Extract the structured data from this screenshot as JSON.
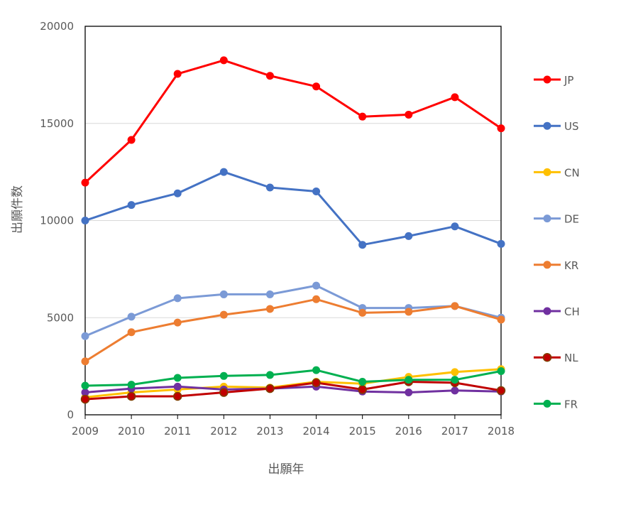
{
  "chart_data": {
    "type": "line",
    "title": "",
    "xlabel": "出願年",
    "ylabel": "出願件数",
    "x": [
      "2009",
      "2010",
      "2011",
      "2012",
      "2013",
      "2014",
      "2015",
      "2016",
      "2017",
      "2018"
    ],
    "ylim": [
      0,
      20000
    ],
    "yticks": [
      "0",
      "5000",
      "10000",
      "15000",
      "20000"
    ],
    "grid": true,
    "legend_position": "right",
    "series": [
      {
        "name": "JP",
        "color": "#ff0000",
        "values": [
          11950,
          14150,
          17550,
          18250,
          17450,
          16900,
          15350,
          15450,
          16350,
          14750
        ]
      },
      {
        "name": "US",
        "color": "#4472c4",
        "values": [
          10000,
          10800,
          11400,
          12500,
          11700,
          11500,
          8750,
          9200,
          9700,
          8800
        ]
      },
      {
        "name": "CN",
        "color": "#ffc000",
        "values": [
          900,
          1150,
          1300,
          1450,
          1400,
          1700,
          1600,
          1950,
          2200,
          2350
        ]
      },
      {
        "name": "DE",
        "color": "#7b9ad6",
        "values": [
          4050,
          5050,
          6000,
          6200,
          6200,
          6650,
          5500,
          5500,
          5600,
          5000
        ]
      },
      {
        "name": "KR",
        "color": "#ed7d31",
        "values": [
          2750,
          4250,
          4750,
          5150,
          5450,
          5950,
          5250,
          5300,
          5600,
          4900
        ]
      },
      {
        "name": "CH",
        "color": "#7030a0",
        "values": [
          1150,
          1350,
          1450,
          1300,
          1350,
          1450,
          1200,
          1150,
          1250,
          1200
        ]
      },
      {
        "name": "NL",
        "color": "#c00000",
        "values": [
          800,
          950,
          950,
          1150,
          1350,
          1650,
          1300,
          1700,
          1650,
          1250
        ]
      },
      {
        "name": "FR",
        "color": "#00b050",
        "values": [
          1500,
          1550,
          1900,
          2000,
          2050,
          2300,
          1700,
          1800,
          1800,
          2250
        ]
      }
    ]
  }
}
